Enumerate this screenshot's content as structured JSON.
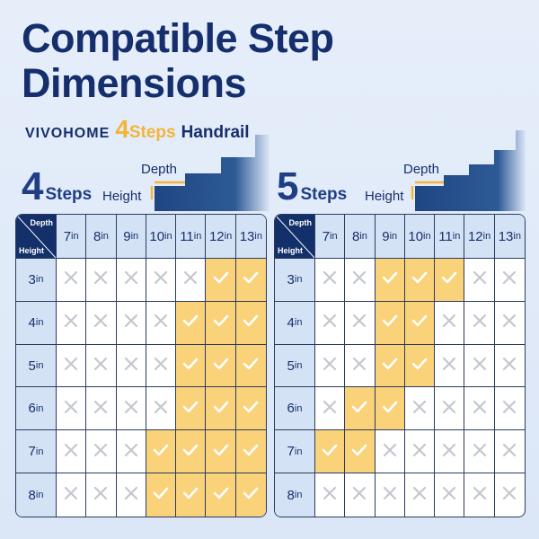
{
  "title_line1": "Compatible Step",
  "title_line2": "Dimensions",
  "brand": {
    "logo": "VIVOHOME",
    "number": "4",
    "steps": "Steps",
    "product": "Handrail"
  },
  "colors": {
    "navy": "#152e6c",
    "gold": "#f3b43a",
    "check_bg": "#f9d27a",
    "header_bg": "#d3e2f5"
  },
  "diagram": {
    "depth_label": "Depth",
    "height_label": "Height"
  },
  "unit": "in",
  "corner": {
    "depth": "Depth",
    "height": "Height"
  },
  "depths": [
    "7",
    "8",
    "9",
    "10",
    "11",
    "12",
    "13"
  ],
  "heights": [
    "3",
    "4",
    "5",
    "6",
    "7",
    "8"
  ],
  "tables": [
    {
      "number": "4",
      "label": "Steps",
      "compatible": {
        "3": [
          "12",
          "13"
        ],
        "4": [
          "11",
          "12",
          "13"
        ],
        "5": [
          "11",
          "12",
          "13"
        ],
        "6": [
          "11",
          "12",
          "13"
        ],
        "7": [
          "10",
          "11",
          "12",
          "13"
        ],
        "8": [
          "10",
          "11",
          "12",
          "13"
        ]
      }
    },
    {
      "number": "5",
      "label": "Steps",
      "compatible": {
        "3": [
          "9",
          "10",
          "11"
        ],
        "4": [
          "9",
          "10"
        ],
        "5": [
          "9",
          "10"
        ],
        "6": [
          "8",
          "9"
        ],
        "7": [
          "7",
          "8"
        ],
        "8": []
      }
    }
  ]
}
